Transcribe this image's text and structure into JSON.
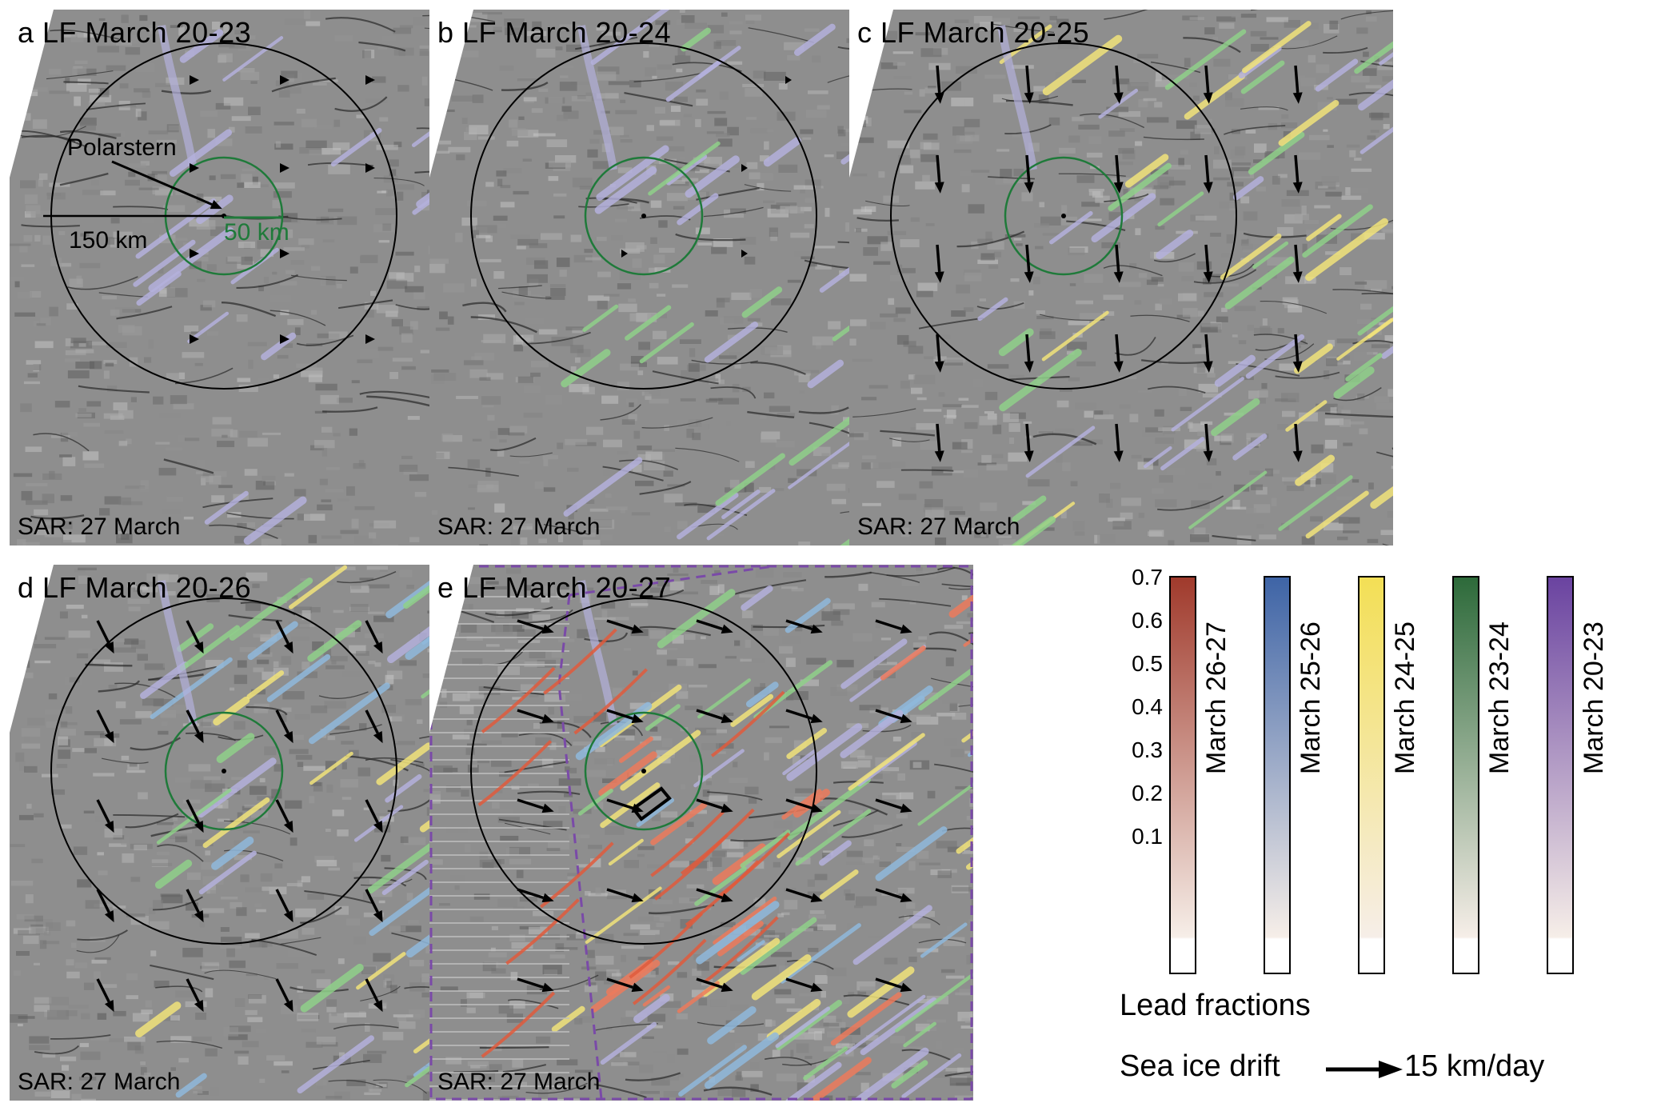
{
  "panels": [
    {
      "id": "a",
      "title": "a LF March 20-23",
      "footer": "SAR: 27 March",
      "lead_colors": [
        "#b4b0dc"
      ],
      "arrows": "none"
    },
    {
      "id": "b",
      "title": "b LF March 20-24",
      "footer": "SAR: 27 March",
      "lead_colors": [
        "#b4b0dc",
        "#8fd08a"
      ],
      "arrows": "none"
    },
    {
      "id": "c",
      "title": "c LF March 20-25",
      "footer": "SAR: 27 March",
      "lead_colors": [
        "#b4b0dc",
        "#8fd08a",
        "#f1e37a"
      ],
      "arrows": "down"
    },
    {
      "id": "d",
      "title": "d LF March 20-26",
      "footer": "SAR: 27 March",
      "lead_colors": [
        "#b4b0dc",
        "#8fd08a",
        "#f1e37a",
        "#8fb9dc"
      ],
      "arrows": "southeast"
    },
    {
      "id": "e",
      "title": "e LF March 20-27",
      "footer": "SAR: 27 March",
      "lead_colors": [
        "#b4b0dc",
        "#8fd08a",
        "#f1e37a",
        "#8fb9dc",
        "#ec7a5c"
      ],
      "arrows": "east"
    }
  ],
  "annotations": {
    "polarstern": "Polarstern",
    "outer_radius": "150 km",
    "inner_radius": "50 km"
  },
  "colorbar": {
    "ticks": [
      "0.7",
      "0.6",
      "0.5",
      "0.4",
      "0.3",
      "0.2",
      "0.1"
    ],
    "tick_values": [
      0.7,
      0.6,
      0.5,
      0.4,
      0.3,
      0.2,
      0.1
    ],
    "range": [
      0.0,
      0.7
    ],
    "series": [
      {
        "label": "March 26-27",
        "color": "#a03a2c"
      },
      {
        "label": "March 25-26",
        "color": "#3e64a6"
      },
      {
        "label": "March 24-25",
        "color": "#f3df55"
      },
      {
        "label": "March 23-24",
        "color": "#2d6a3a"
      },
      {
        "label": "March 20-23",
        "color": "#6a43a0"
      }
    ]
  },
  "legend": {
    "lead_fractions": "Lead fractions",
    "drift_label": "Sea ice drift",
    "drift_scale": "15 km/day"
  },
  "colors": {
    "outer_circle": "#000000",
    "inner_circle": "#1f7a3a",
    "hatch_box": "#7a4aa8"
  }
}
